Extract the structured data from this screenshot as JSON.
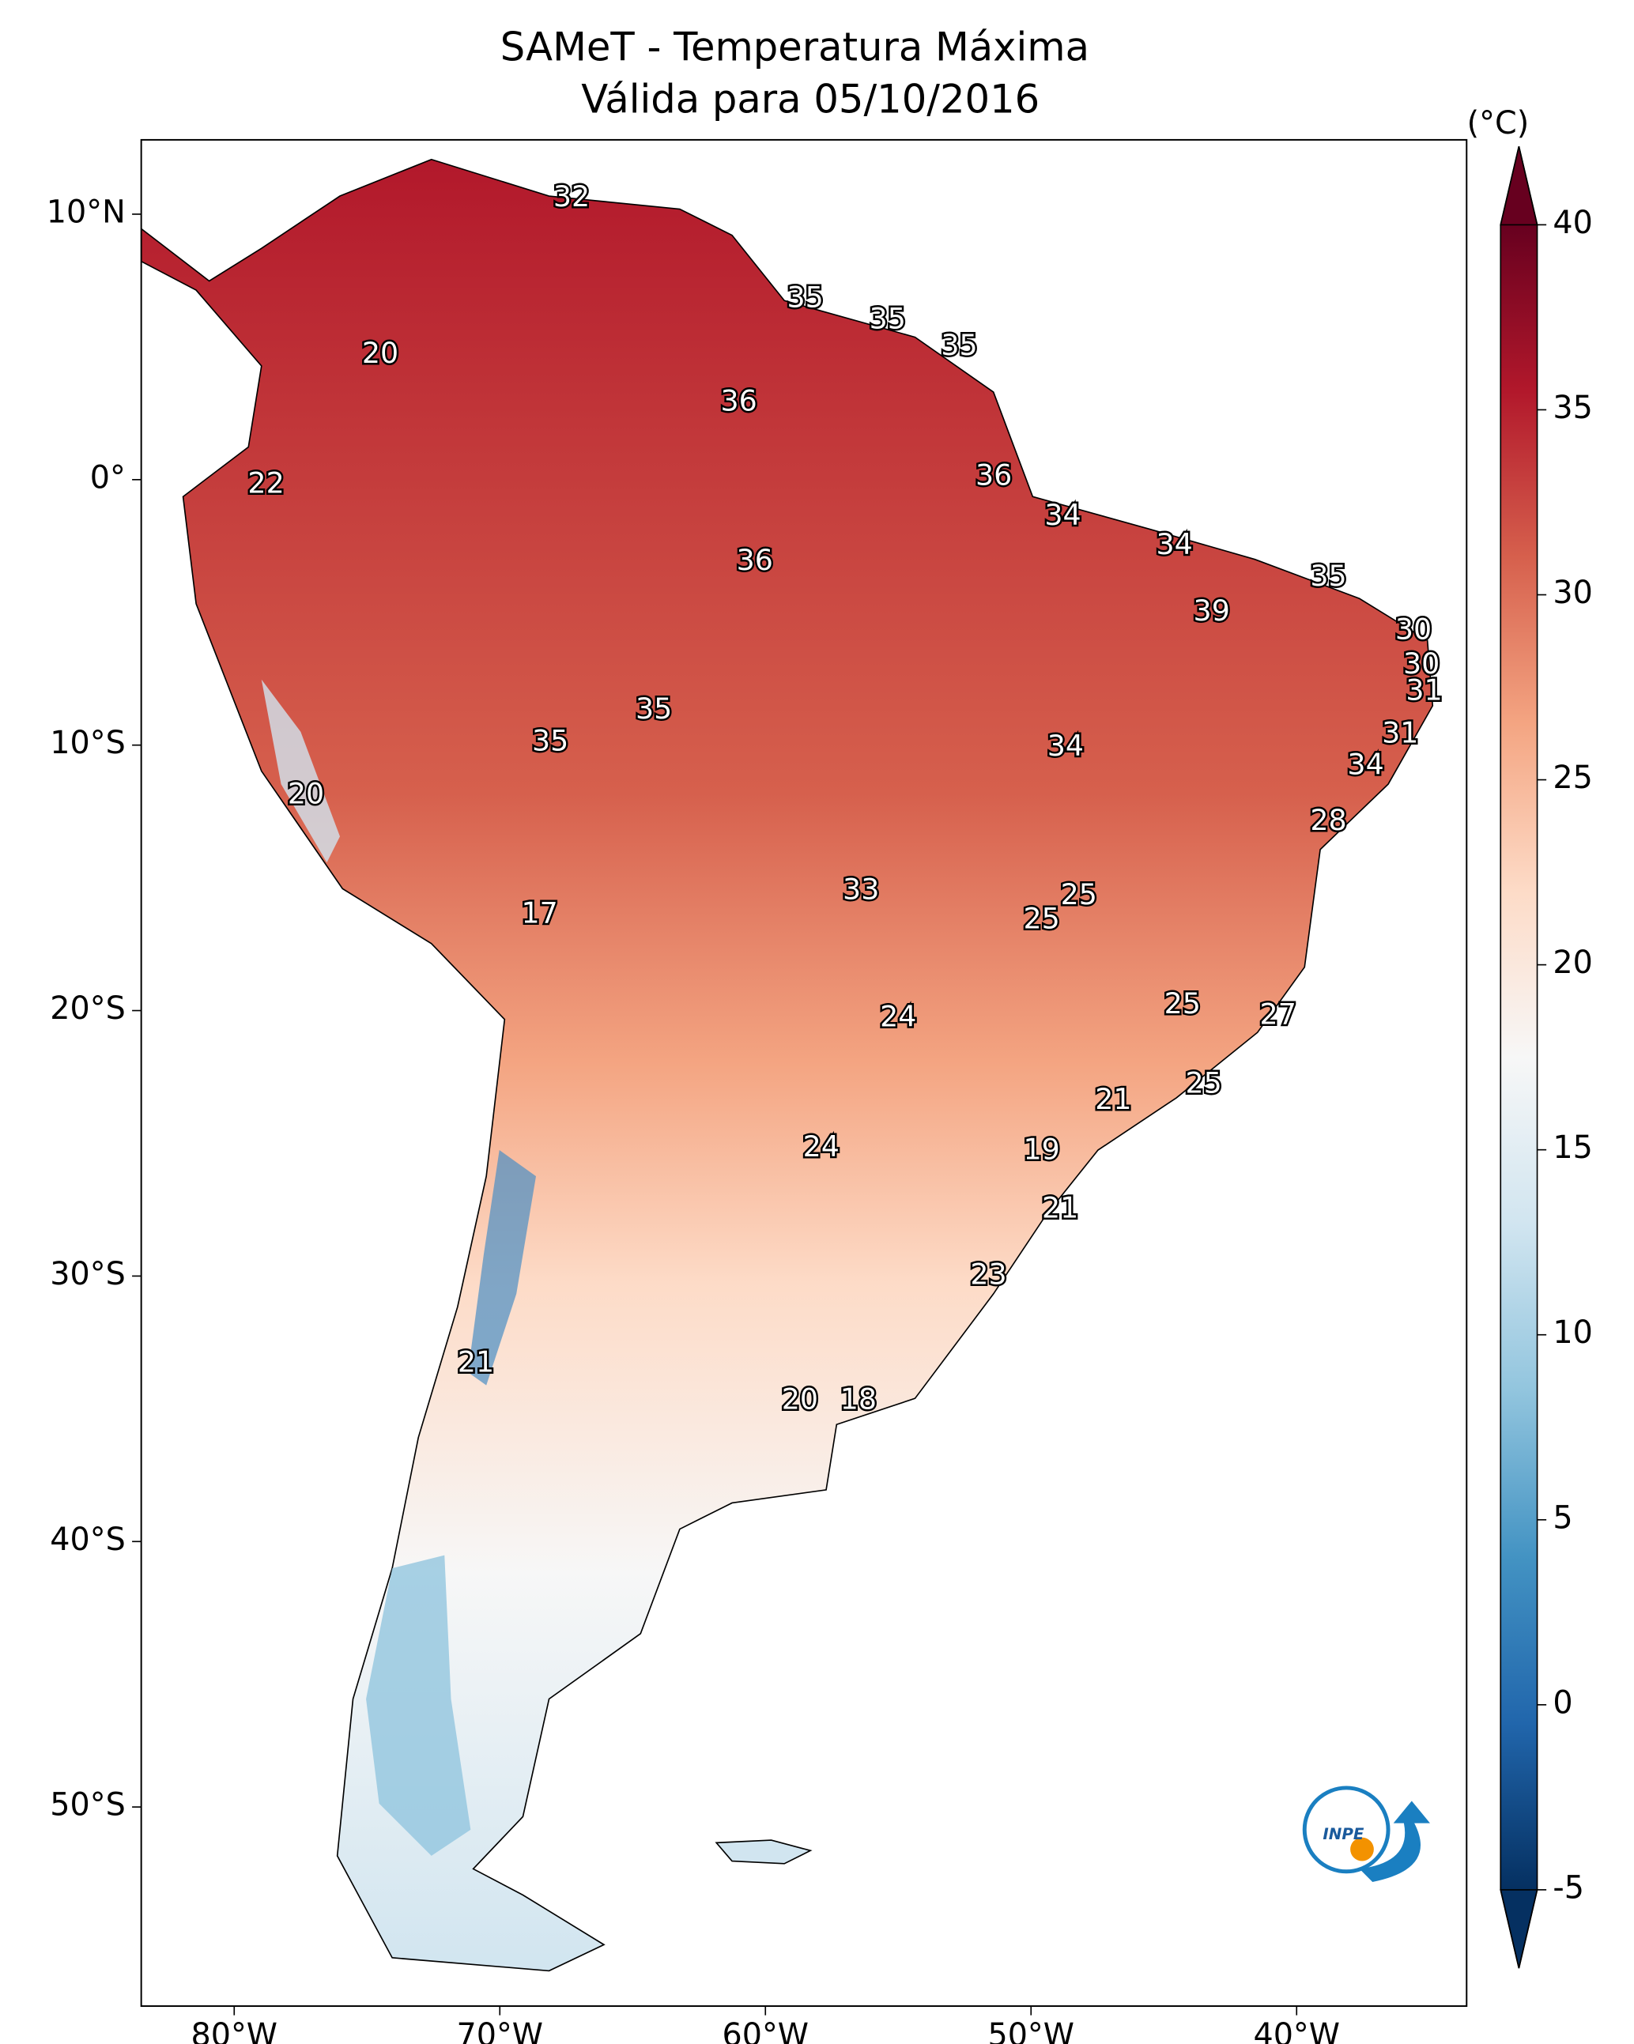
{
  "chart_data": {
    "type": "map",
    "title": "SAMeT - Temperatura Máxima",
    "subtitle": "Válida para 05/10/2016",
    "xlim": [
      -83.5,
      -33.6
    ],
    "ylim": [
      -57.5,
      12.8
    ],
    "xticks": [
      {
        "value": -80,
        "label": "80°W"
      },
      {
        "value": -70,
        "label": "70°W"
      },
      {
        "value": -60,
        "label": "60°W"
      },
      {
        "value": -50,
        "label": "50°W"
      },
      {
        "value": -40,
        "label": "40°W"
      }
    ],
    "yticks": [
      {
        "value": 10,
        "label": "10°N"
      },
      {
        "value": 0,
        "label": "0°"
      },
      {
        "value": -10,
        "label": "10°S"
      },
      {
        "value": -20,
        "label": "20°S"
      },
      {
        "value": -30,
        "label": "30°S"
      },
      {
        "value": -40,
        "label": "40°S"
      },
      {
        "value": -50,
        "label": "50°S"
      }
    ],
    "colorbar": {
      "label": "(°C)",
      "lim": [
        -5,
        40
      ],
      "ticks": [
        40,
        35,
        30,
        25,
        20,
        15,
        10,
        5,
        0,
        -5
      ],
      "colormap": [
        "#053061",
        "#2166ac",
        "#4393c3",
        "#92c5de",
        "#d1e5f0",
        "#f7f7f7",
        "#fddbc7",
        "#f4a582",
        "#d6604d",
        "#b2182b",
        "#67001f"
      ]
    },
    "labels": {
      "lon": [
        -67.3,
        -58.5,
        -55.4,
        -52.7,
        -74.5,
        -61.0,
        -78.8,
        -51.4,
        -48.8,
        -60.4,
        -44.6,
        -38.8,
        -43.2,
        -35.6,
        -35.3,
        -35.2,
        -64.2,
        -68.1,
        -48.7,
        -36.1,
        -37.4,
        -77.3,
        -38.8,
        -56.4,
        -48.2,
        -49.6,
        -68.5,
        -55.0,
        -44.3,
        -40.7,
        -43.5,
        -46.9,
        -57.9,
        -49.6,
        -48.9,
        -51.6,
        -70.9,
        -58.7,
        -56.5
      ],
      "lat": [
        10.6,
        6.8,
        6.0,
        5.0,
        4.7,
        2.9,
        -0.2,
        0.1,
        -1.4,
        -3.1,
        -2.5,
        -3.7,
        -5.0,
        -5.7,
        -7.0,
        -8.0,
        -8.7,
        -9.9,
        -10.1,
        -9.6,
        -10.8,
        -11.9,
        -12.9,
        -15.5,
        -15.7,
        -16.6,
        -16.4,
        -20.3,
        -19.8,
        -20.2,
        -22.8,
        -23.4,
        -25.2,
        -25.3,
        -27.5,
        -30.0,
        -33.3,
        -34.7,
        -34.7
      ],
      "values": [
        32,
        35,
        35,
        35,
        20,
        36,
        22,
        36,
        34,
        36,
        34,
        35,
        39,
        30,
        30,
        31,
        35,
        35,
        34,
        31,
        34,
        20,
        28,
        33,
        25,
        25,
        17,
        24,
        25,
        27,
        25,
        21,
        24,
        19,
        21,
        23,
        21,
        20,
        18
      ]
    },
    "logo_text": "INPE"
  }
}
